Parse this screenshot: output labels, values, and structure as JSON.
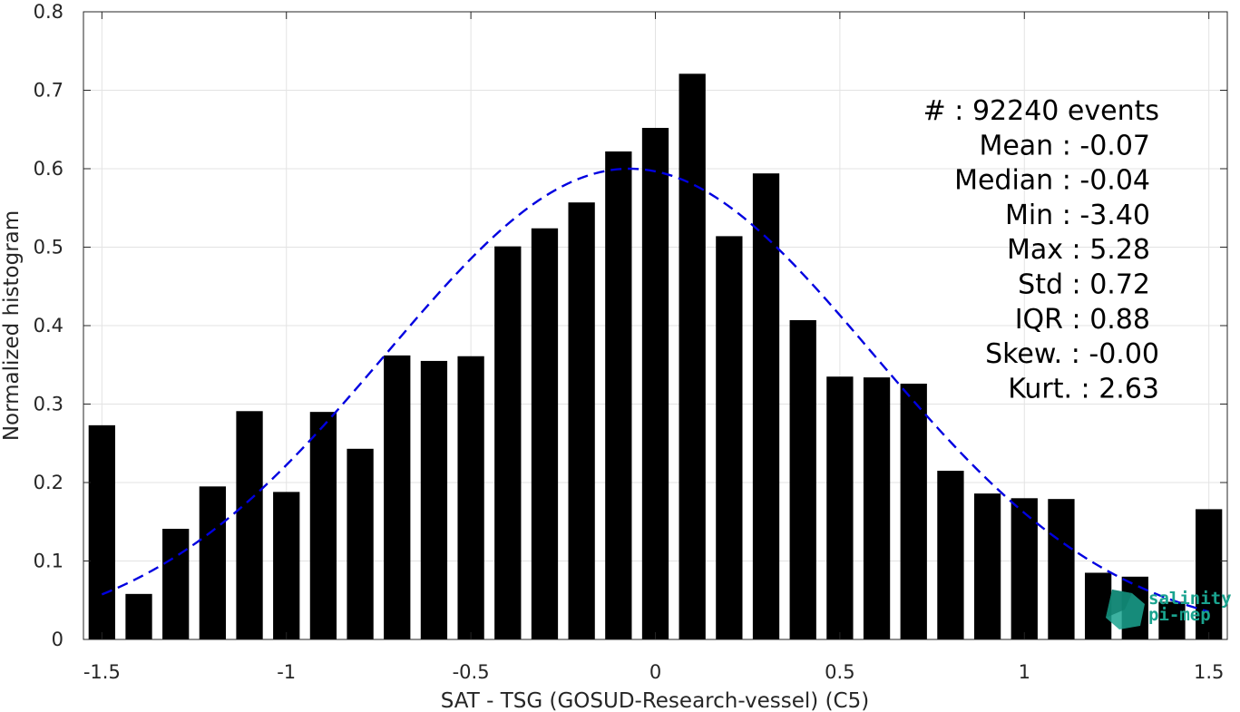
{
  "chart_data": {
    "type": "bar",
    "xlabel": "SAT - TSG (GOSUD-Research-vessel) (C5)",
    "ylabel": "Normalized histogram",
    "xlim": [
      -1.55,
      1.55
    ],
    "ylim": [
      0,
      0.8
    ],
    "x_ticks": [
      -1.5,
      -1,
      -0.5,
      0,
      0.5,
      1,
      1.5
    ],
    "x_tick_labels": [
      "-1.5",
      "-1",
      "-0.5",
      "0",
      "0.5",
      "1",
      "1.5"
    ],
    "y_ticks": [
      0,
      0.1,
      0.2,
      0.3,
      0.4,
      0.5,
      0.6,
      0.7,
      0.8
    ],
    "y_tick_labels": [
      "0",
      "0.1",
      "0.2",
      "0.3",
      "0.4",
      "0.5",
      "0.6",
      "0.7",
      "0.8"
    ],
    "grid": true,
    "bin_width": 0.1,
    "bars": {
      "x": [
        -1.5,
        -1.4,
        -1.3,
        -1.2,
        -1.1,
        -1.0,
        -0.9,
        -0.8,
        -0.7,
        -0.6,
        -0.5,
        -0.4,
        -0.3,
        -0.2,
        -0.1,
        0.0,
        0.1,
        0.2,
        0.3,
        0.4,
        0.5,
        0.6,
        0.7,
        0.8,
        0.9,
        1.0,
        1.1,
        1.2,
        1.3,
        1.4,
        1.5
      ],
      "values": [
        0.273,
        0.058,
        0.141,
        0.195,
        0.291,
        0.188,
        0.29,
        0.243,
        0.362,
        0.355,
        0.361,
        0.501,
        0.524,
        0.557,
        0.622,
        0.652,
        0.721,
        0.514,
        0.594,
        0.407,
        0.335,
        0.334,
        0.326,
        0.215,
        0.186,
        0.18,
        0.179,
        0.085,
        0.08,
        0.048,
        0.166
      ],
      "color": "#000000"
    },
    "fit_curve": {
      "style": "dashed",
      "color": "#0000e0",
      "x_range": [
        -1.5,
        1.5
      ],
      "mean": -0.07,
      "peak": 0.6,
      "std": 0.66
    },
    "stats": [
      {
        "label": "#  : 92240 events"
      },
      {
        "label": "Mean : -0.07"
      },
      {
        "label": "Median : -0.04"
      },
      {
        "label": "Min : -3.40"
      },
      {
        "label": "Max : 5.28"
      },
      {
        "label": "Std : 0.72"
      },
      {
        "label": "IQR : 0.88"
      },
      {
        "label": "Skew. : -0.00"
      },
      {
        "label": "Kurt. : 2.63"
      }
    ]
  },
  "logo": {
    "line1": "salinity",
    "line2": "pi-mep",
    "color": "#1aa38f"
  }
}
